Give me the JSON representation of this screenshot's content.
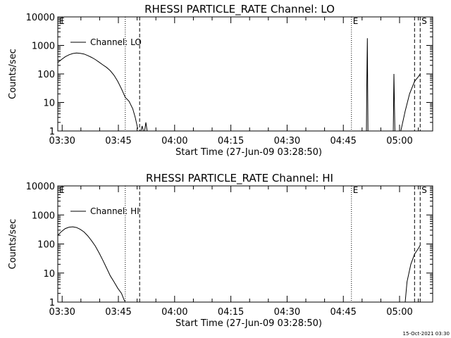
{
  "footer": {
    "timestamp": "15-Oct-2021 03:30"
  },
  "chart_data": [
    {
      "type": "line",
      "title": "RHESSI PARTICLE_RATE Channel: LO",
      "xlabel": "Start Time (27-Jun-09 03:28:50)",
      "ylabel": "Counts/sec",
      "x_tick_labels": [
        "03:30",
        "03:45",
        "04:00",
        "04:15",
        "04:30",
        "04:45",
        "05:00"
      ],
      "y_tick_labels": [
        "1",
        "10",
        "100",
        "1000",
        "10000"
      ],
      "y_scale": "log",
      "xlim": [
        "03:28:50",
        "05:08:50"
      ],
      "ylim": [
        1,
        10000
      ],
      "legend": {
        "label": "Channel: LO",
        "placement": "top-left"
      },
      "markers": [
        {
          "label": "E",
          "time": "03:28:50",
          "style": "dotted"
        },
        {
          "label": "",
          "time": "03:46:50",
          "style": "dotted"
        },
        {
          "label": "",
          "time": "03:50:40",
          "style": "dashed"
        },
        {
          "label": "E",
          "time": "04:47:10",
          "style": "dotted"
        },
        {
          "label": "",
          "time": "05:04:00",
          "style": "dashed"
        },
        {
          "label": "S",
          "time": "05:05:30",
          "style": "dashed"
        }
      ],
      "series": [
        {
          "name": "Channel: LO",
          "segments": [
            [
              [
                "03:28:50",
                250
              ],
              [
                "03:29:50",
                320
              ],
              [
                "03:30:50",
                400
              ],
              [
                "03:31:50",
                470
              ],
              [
                "03:32:50",
                520
              ],
              [
                "03:33:50",
                540
              ],
              [
                "03:34:50",
                530
              ],
              [
                "03:35:50",
                500
              ],
              [
                "03:36:50",
                440
              ],
              [
                "03:37:50",
                380
              ],
              [
                "03:38:50",
                320
              ],
              [
                "03:39:50",
                260
              ],
              [
                "03:40:50",
                210
              ],
              [
                "03:41:50",
                170
              ],
              [
                "03:42:50",
                130
              ],
              [
                "03:43:50",
                90
              ],
              [
                "03:44:50",
                55
              ],
              [
                "03:45:50",
                30
              ],
              [
                "03:46:50",
                15
              ],
              [
                "03:47:50",
                11
              ],
              [
                "03:48:50",
                6
              ],
              [
                "03:49:30",
                3
              ],
              [
                "03:50:10",
                1.2
              ]
            ],
            [
              [
                "03:51:00",
                1
              ],
              [
                "03:51:20",
                1.5
              ],
              [
                "03:51:40",
                1
              ]
            ],
            [
              [
                "03:52:00",
                1
              ],
              [
                "03:52:20",
                2
              ],
              [
                "03:52:40",
                1
              ]
            ],
            [
              [
                "04:51:10",
                1
              ],
              [
                "04:51:15",
                40
              ],
              [
                "04:51:25",
                1800
              ],
              [
                "04:51:35",
                1
              ]
            ],
            [
              [
                "04:58:20",
                1
              ],
              [
                "04:58:30",
                100
              ],
              [
                "04:58:45",
                1
              ]
            ],
            [
              [
                "05:00:20",
                1
              ],
              [
                "05:01:30",
                5
              ],
              [
                "05:02:40",
                20
              ],
              [
                "05:04:00",
                55
              ],
              [
                "05:05:00",
                80
              ],
              [
                "05:05:30",
                100
              ]
            ]
          ]
        }
      ]
    },
    {
      "type": "line",
      "title": "RHESSI PARTICLE_RATE Channel: HI",
      "xlabel": "Start Time (27-Jun-09 03:28:50)",
      "ylabel": "Counts/sec",
      "x_tick_labels": [
        "03:30",
        "03:45",
        "04:00",
        "04:15",
        "04:30",
        "04:45",
        "05:00"
      ],
      "y_tick_labels": [
        "1",
        "10",
        "100",
        "1000",
        "10000"
      ],
      "y_scale": "log",
      "xlim": [
        "03:28:50",
        "05:08:50"
      ],
      "ylim": [
        1,
        10000
      ],
      "legend": {
        "label": "Channel: HI",
        "placement": "top-left"
      },
      "markers": [
        {
          "label": "E",
          "time": "03:28:50",
          "style": "dotted"
        },
        {
          "label": "",
          "time": "03:46:50",
          "style": "dotted"
        },
        {
          "label": "",
          "time": "03:50:40",
          "style": "dashed"
        },
        {
          "label": "E",
          "time": "04:47:10",
          "style": "dotted"
        },
        {
          "label": "",
          "time": "05:04:00",
          "style": "dashed"
        },
        {
          "label": "S",
          "time": "05:05:30",
          "style": "dashed"
        }
      ],
      "series": [
        {
          "name": "Channel: HI",
          "segments": [
            [
              [
                "03:28:50",
                200
              ],
              [
                "03:29:50",
                270
              ],
              [
                "03:30:50",
                340
              ],
              [
                "03:31:50",
                380
              ],
              [
                "03:32:50",
                390
              ],
              [
                "03:33:50",
                370
              ],
              [
                "03:34:50",
                320
              ],
              [
                "03:35:50",
                260
              ],
              [
                "03:36:50",
                190
              ],
              [
                "03:37:50",
                130
              ],
              [
                "03:38:50",
                85
              ],
              [
                "03:39:50",
                50
              ],
              [
                "03:40:50",
                28
              ],
              [
                "03:41:50",
                15
              ],
              [
                "03:42:50",
                8
              ],
              [
                "03:43:50",
                5
              ],
              [
                "03:44:50",
                3
              ],
              [
                "03:45:50",
                2
              ],
              [
                "03:46:30",
                1.2
              ],
              [
                "03:46:50",
                1
              ]
            ],
            [
              [
                "05:01:30",
                1
              ],
              [
                "05:02:00",
                5
              ],
              [
                "05:03:00",
                20
              ],
              [
                "05:04:00",
                45
              ],
              [
                "05:05:00",
                70
              ],
              [
                "05:05:30",
                90
              ]
            ]
          ]
        }
      ]
    }
  ]
}
